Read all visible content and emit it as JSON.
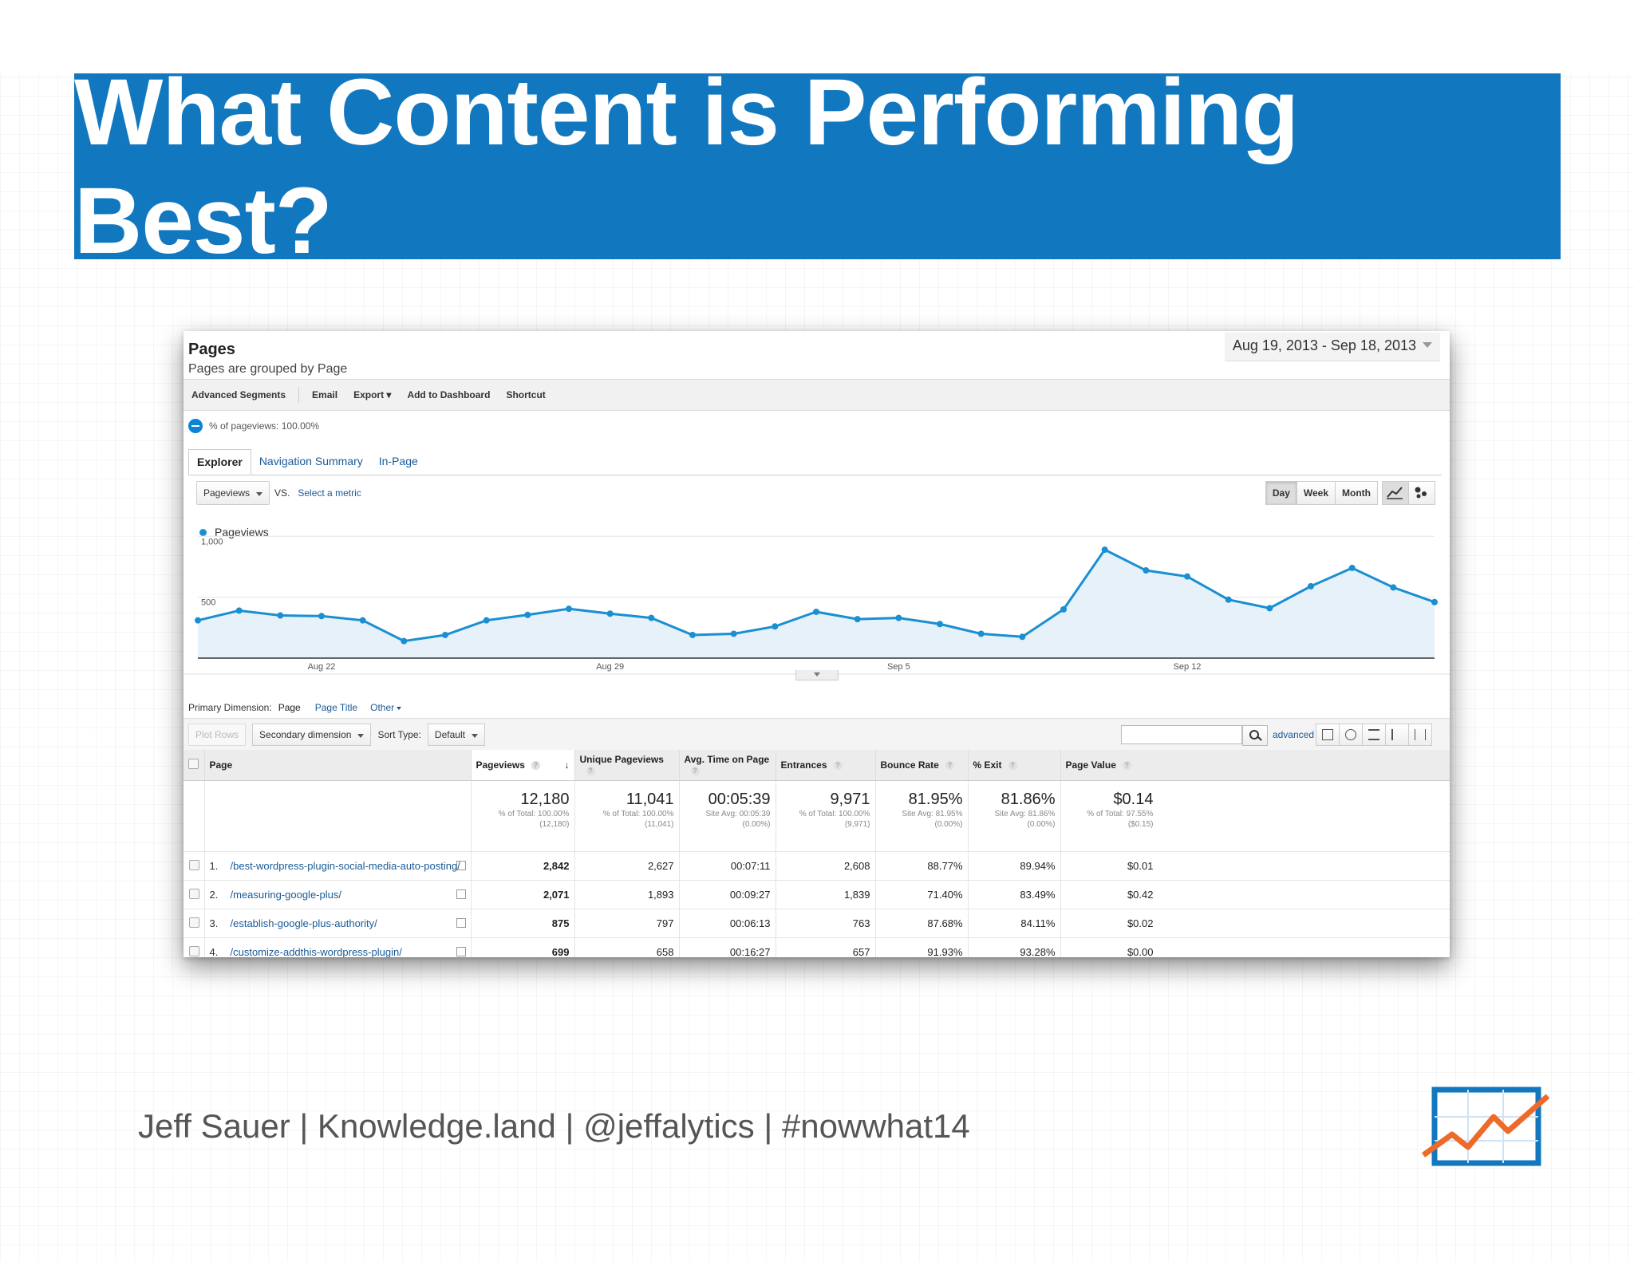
{
  "slide": {
    "title": "What Content is Performing Best?",
    "footer": "Jeff Sauer | Knowledge.land | @jeffalytics | #nowwhat14",
    "colors": {
      "banner": "#1177bf",
      "link": "#1a5a96",
      "line": "#1a8fd1"
    },
    "logo_icon": "line-chart-logo-icon"
  },
  "report": {
    "title": "Pages",
    "subtitle": "Pages are grouped by Page",
    "date_range": "Aug 19, 2013 - Sep 18, 2013",
    "toolbar": {
      "advanced_segments": "Advanced Segments",
      "email": "Email",
      "export": "Export",
      "add_to_dashboard": "Add to Dashboard",
      "shortcut": "Shortcut"
    },
    "segment_text": "% of pageviews: 100.00%",
    "tabs": [
      "Explorer",
      "Navigation Summary",
      "In-Page"
    ],
    "metric_select": "Pageviews",
    "vs": "VS.",
    "select_metric": "Select a metric",
    "periods": [
      "Day",
      "Week",
      "Month"
    ],
    "legend": "Pageviews",
    "primary_dimension": {
      "label": "Primary Dimension:",
      "active": "Page",
      "options": [
        "Page Title",
        "Other"
      ]
    },
    "table_toolbar": {
      "plot_rows": "Plot Rows",
      "secondary_dimension": "Secondary dimension",
      "sort_type_label": "Sort Type:",
      "sort_type": "Default",
      "advanced": "advanced"
    },
    "columns": [
      "Page",
      "Pageviews",
      "Unique Pageviews",
      "Avg. Time on Page",
      "Entrances",
      "Bounce Rate",
      "% Exit",
      "Page Value"
    ],
    "totals": [
      {
        "big": "12,180",
        "l1": "% of Total: 100.00%",
        "l2": "(12,180)"
      },
      {
        "big": "11,041",
        "l1": "% of Total: 100.00%",
        "l2": "(11,041)"
      },
      {
        "big": "00:05:39",
        "l1": "Site Avg: 00:05:39",
        "l2": "(0.00%)"
      },
      {
        "big": "9,971",
        "l1": "% of Total: 100.00%",
        "l2": "(9,971)"
      },
      {
        "big": "81.95%",
        "l1": "Site Avg: 81.95%",
        "l2": "(0.00%)"
      },
      {
        "big": "81.86%",
        "l1": "Site Avg: 81.86%",
        "l2": "(0.00%)"
      },
      {
        "big": "$0.14",
        "l1": "% of Total: 97.55%",
        "l2": "($0.15)"
      }
    ],
    "rows": [
      {
        "num": "1.",
        "page": "/best-wordpress-plugin-social-media-auto-posting/",
        "pageviews": "2,842",
        "unique": "2,627",
        "avg_time": "00:07:11",
        "entrances": "2,608",
        "bounce": "88.77%",
        "exit": "89.94%",
        "value": "$0.01"
      },
      {
        "num": "2.",
        "page": "/measuring-google-plus/",
        "pageviews": "2,071",
        "unique": "1,893",
        "avg_time": "00:09:27",
        "entrances": "1,839",
        "bounce": "71.40%",
        "exit": "83.49%",
        "value": "$0.42"
      },
      {
        "num": "3.",
        "page": "/establish-google-plus-authority/",
        "pageviews": "875",
        "unique": "797",
        "avg_time": "00:06:13",
        "entrances": "763",
        "bounce": "87.68%",
        "exit": "84.11%",
        "value": "$0.02"
      },
      {
        "num": "4.",
        "page": "/customize-addthis-wordpress-plugin/",
        "pageviews": "699",
        "unique": "658",
        "avg_time": "00:16:27",
        "entrances": "657",
        "bounce": "91.93%",
        "exit": "93.28%",
        "value": "$0.00"
      }
    ]
  },
  "chart_data": {
    "type": "area",
    "title": "",
    "xlabel": "",
    "ylabel": "",
    "ylim": [
      0,
      1100
    ],
    "yticks": [
      {
        "value": 1000,
        "label": "1,000"
      },
      {
        "value": 500,
        "label": "500"
      }
    ],
    "xticks": [
      {
        "index": 3,
        "label": "Aug 22"
      },
      {
        "index": 10,
        "label": "Aug 29"
      },
      {
        "index": 17,
        "label": "Sep 5"
      },
      {
        "index": 24,
        "label": "Sep 12"
      }
    ],
    "series": [
      {
        "name": "Pageviews",
        "values": [
          310,
          390,
          350,
          345,
          310,
          140,
          190,
          310,
          355,
          405,
          365,
          330,
          190,
          200,
          260,
          380,
          320,
          330,
          280,
          200,
          175,
          400,
          890,
          720,
          670,
          480,
          410,
          590,
          740,
          580,
          460
        ]
      }
    ],
    "grid": false
  }
}
